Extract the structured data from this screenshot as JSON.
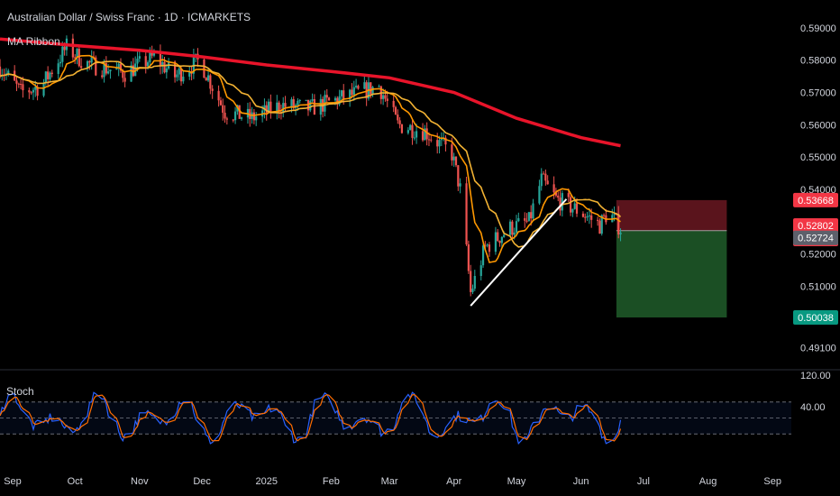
{
  "header": {
    "symbol_title": "Australian Dollar / Swiss Franc · 1D · ICMARKETS",
    "indicator": "MA Ribbon"
  },
  "stoch_panel": {
    "label": "Stoch",
    "levels": [
      "120.00",
      "40.00"
    ]
  },
  "price_axis": {
    "ticks": [
      "0.59000",
      "0.58000",
      "0.57000",
      "0.56000",
      "0.55000",
      "0.54000",
      "0.53000",
      "0.52000",
      "0.51000",
      "0.49100"
    ],
    "tags": {
      "stop": "0.53668",
      "current": "0.52802",
      "countdown": "06:28:21",
      "entry": "0.52724",
      "target": "0.50038"
    }
  },
  "time_axis": {
    "labels": [
      "Sep",
      "Oct",
      "Nov",
      "Dec",
      "2025",
      "Feb",
      "Mar",
      "Apr",
      "May",
      "Jun",
      "Jul",
      "Aug",
      "Sep"
    ]
  },
  "colors": {
    "background": "#000000",
    "up": "#26a69a",
    "down": "#ef5350",
    "ma_long": "#e8142a",
    "ma_fast": "#ff9800",
    "ma_slow": "#f2b233",
    "stop_zone": "#5a141c",
    "target_zone": "#1b4f24",
    "stoch_k": "#2962ff",
    "stoch_d": "#ff6d00"
  },
  "chart_data": {
    "type": "candlestick",
    "title": "Australian Dollar / Swiss Franc · 1D · ICMARKETS",
    "x_range": [
      "2024-08-26",
      "2025-09-10"
    ],
    "ylim": [
      0.487,
      0.593
    ],
    "long_ma": [
      {
        "date": "2024-08-26",
        "value": 0.5865
      },
      {
        "date": "2024-10-01",
        "value": 0.5845
      },
      {
        "date": "2024-11-01",
        "value": 0.583
      },
      {
        "date": "2024-12-01",
        "value": 0.581
      },
      {
        "date": "2025-01-01",
        "value": 0.5785
      },
      {
        "date": "2025-02-01",
        "value": 0.5765
      },
      {
        "date": "2025-03-01",
        "value": 0.5745
      },
      {
        "date": "2025-04-01",
        "value": 0.57
      },
      {
        "date": "2025-05-01",
        "value": 0.562
      },
      {
        "date": "2025-06-01",
        "value": 0.556
      },
      {
        "date": "2025-06-20",
        "value": 0.5535
      }
    ],
    "price_path": [
      {
        "date": "2024-08-26",
        "value": 0.578
      },
      {
        "date": "2024-09-05",
        "value": 0.57
      },
      {
        "date": "2024-09-15",
        "value": 0.572
      },
      {
        "date": "2024-09-27",
        "value": 0.584
      },
      {
        "date": "2024-10-06",
        "value": 0.579
      },
      {
        "date": "2024-10-25",
        "value": 0.576
      },
      {
        "date": "2024-11-08",
        "value": 0.581
      },
      {
        "date": "2024-11-18",
        "value": 0.575
      },
      {
        "date": "2024-11-30",
        "value": 0.58
      },
      {
        "date": "2024-12-12",
        "value": 0.564
      },
      {
        "date": "2024-12-25",
        "value": 0.562
      },
      {
        "date": "2025-01-08",
        "value": 0.566
      },
      {
        "date": "2025-01-22",
        "value": 0.565
      },
      {
        "date": "2025-02-05",
        "value": 0.568
      },
      {
        "date": "2025-02-15",
        "value": 0.57
      },
      {
        "date": "2025-02-24",
        "value": 0.572
      },
      {
        "date": "2025-03-05",
        "value": 0.56
      },
      {
        "date": "2025-03-18",
        "value": 0.558
      },
      {
        "date": "2025-03-31",
        "value": 0.551
      },
      {
        "date": "2025-04-04",
        "value": 0.54
      },
      {
        "date": "2025-04-09",
        "value": 0.508
      },
      {
        "date": "2025-04-16",
        "value": 0.522
      },
      {
        "date": "2025-04-28",
        "value": 0.528
      },
      {
        "date": "2025-05-07",
        "value": 0.53
      },
      {
        "date": "2025-05-13",
        "value": 0.543
      },
      {
        "date": "2025-05-20",
        "value": 0.537
      },
      {
        "date": "2025-06-01",
        "value": 0.533
      },
      {
        "date": "2025-06-10",
        "value": 0.529
      },
      {
        "date": "2025-06-14",
        "value": 0.533
      },
      {
        "date": "2025-06-20",
        "value": 0.528
      }
    ],
    "trendline": [
      {
        "date": "2025-04-09",
        "value": 0.504
      },
      {
        "date": "2025-05-25",
        "value": 0.537
      }
    ],
    "position": {
      "type": "short",
      "start": "2025-06-18",
      "end": "2025-08-10",
      "entry": 0.52724,
      "stop": 0.53668,
      "target": 0.50038
    },
    "stochastic": {
      "upper": 80,
      "lower": 20
    }
  }
}
